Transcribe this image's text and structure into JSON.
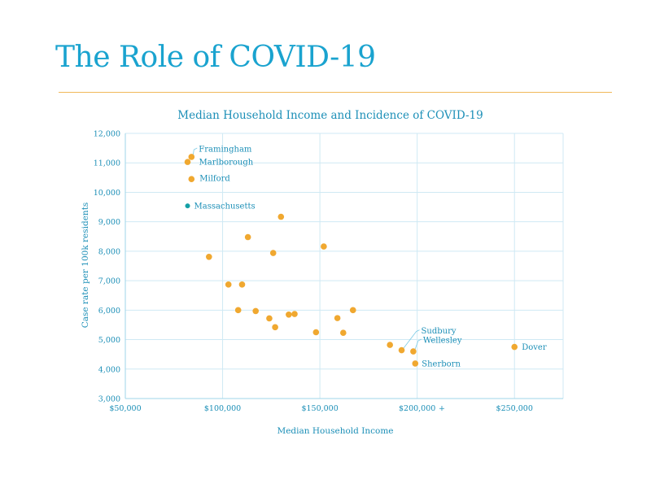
{
  "slide": {
    "title": "The Role of COVID-19"
  },
  "colors": {
    "title": "#1aa3cf",
    "rule": "#f0b85a",
    "point": "#f0a830",
    "highlight": "#14a0a6",
    "text": "#1c8fb7"
  },
  "chart_data": {
    "type": "scatter",
    "title": "Median Household Income and Incidence of COVID-19",
    "xlabel": "Median Household Income",
    "ylabel": "Case rate per 100k residents",
    "xlim": [
      50000,
      275000
    ],
    "ylim": [
      3000,
      12000
    ],
    "grid": true,
    "x_ticks": [
      {
        "value": 50000,
        "label": "$50,000"
      },
      {
        "value": 100000,
        "label": "$100,000"
      },
      {
        "value": 150000,
        "label": "$150,000"
      },
      {
        "value": 200000,
        "label": "$200,000"
      },
      {
        "value": 250000,
        "label": "$250,000"
      }
    ],
    "y_ticks": [
      {
        "value": 3000,
        "label": "3,000"
      },
      {
        "value": 4000,
        "label": "4,000"
      },
      {
        "value": 5000,
        "label": "5,000"
      },
      {
        "value": 6000,
        "label": "6,000"
      },
      {
        "value": 7000,
        "label": "7,000"
      },
      {
        "value": 8000,
        "label": "8,000"
      },
      {
        "value": 9000,
        "label": "9,000"
      },
      {
        "value": 10000,
        "label": "10,000"
      },
      {
        "value": 11000,
        "label": "11,000"
      },
      {
        "value": 12000,
        "label": "12,000"
      }
    ],
    "stray_mark": "+",
    "points": [
      {
        "x": 84000,
        "y": 11200,
        "label": "Framingham"
      },
      {
        "x": 82000,
        "y": 11030,
        "label": "Marlborough"
      },
      {
        "x": 84000,
        "y": 10450,
        "label": "Milford"
      },
      {
        "x": 82000,
        "y": 9540,
        "label": "Massachusetts",
        "highlight": true
      },
      {
        "x": 130000,
        "y": 9170
      },
      {
        "x": 113000,
        "y": 8480
      },
      {
        "x": 152000,
        "y": 8160
      },
      {
        "x": 126000,
        "y": 7940
      },
      {
        "x": 93000,
        "y": 7810
      },
      {
        "x": 103000,
        "y": 6870
      },
      {
        "x": 110000,
        "y": 6870
      },
      {
        "x": 108000,
        "y": 6000
      },
      {
        "x": 117000,
        "y": 5970
      },
      {
        "x": 167000,
        "y": 6000
      },
      {
        "x": 134000,
        "y": 5850
      },
      {
        "x": 137000,
        "y": 5870
      },
      {
        "x": 124000,
        "y": 5720
      },
      {
        "x": 159000,
        "y": 5730
      },
      {
        "x": 127000,
        "y": 5420
      },
      {
        "x": 148000,
        "y": 5250
      },
      {
        "x": 162000,
        "y": 5230
      },
      {
        "x": 186000,
        "y": 4820
      },
      {
        "x": 192000,
        "y": 4640,
        "label": "Sudbury"
      },
      {
        "x": 198000,
        "y": 4600,
        "label": "Wellesley"
      },
      {
        "x": 199000,
        "y": 4190,
        "label": "Sherborn"
      },
      {
        "x": 250000,
        "y": 4750,
        "label": "Dover"
      }
    ]
  }
}
